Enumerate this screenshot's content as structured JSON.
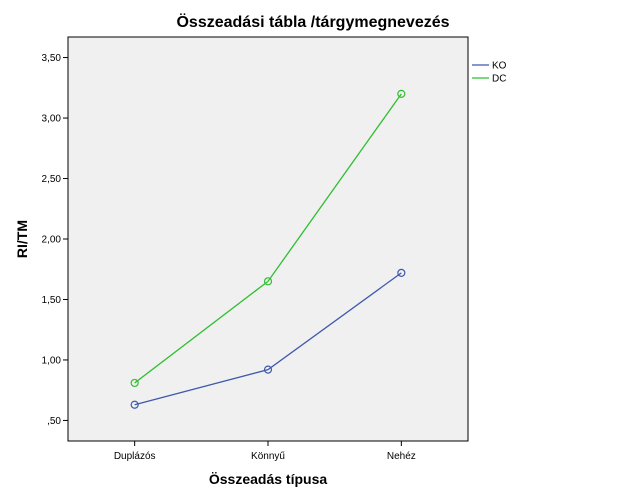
{
  "chart_data": {
    "type": "line",
    "title": "Összeadási tábla /tárgymegnevezés",
    "xlabel": "Összeadás típusa",
    "ylabel": "RI/TM",
    "categories": [
      "Duplázós",
      "Könnyű",
      "Nehéz"
    ],
    "ylim": [
      0.33,
      3.67
    ],
    "yticks": [
      0.5,
      1.0,
      1.5,
      2.0,
      2.5,
      3.0,
      3.5
    ],
    "ytick_labels": [
      ",50",
      "1,00",
      "1,50",
      "2,00",
      "2,50",
      "3,00",
      "3,50"
    ],
    "grid": false,
    "legend_position": "right",
    "background_color": "#f0f0f0",
    "series": [
      {
        "name": "KO",
        "color": "#3e58ac",
        "values": [
          0.63,
          0.92,
          1.72
        ]
      },
      {
        "name": "DC",
        "color": "#2fbe2f",
        "values": [
          0.81,
          1.65,
          3.2
        ]
      }
    ]
  }
}
